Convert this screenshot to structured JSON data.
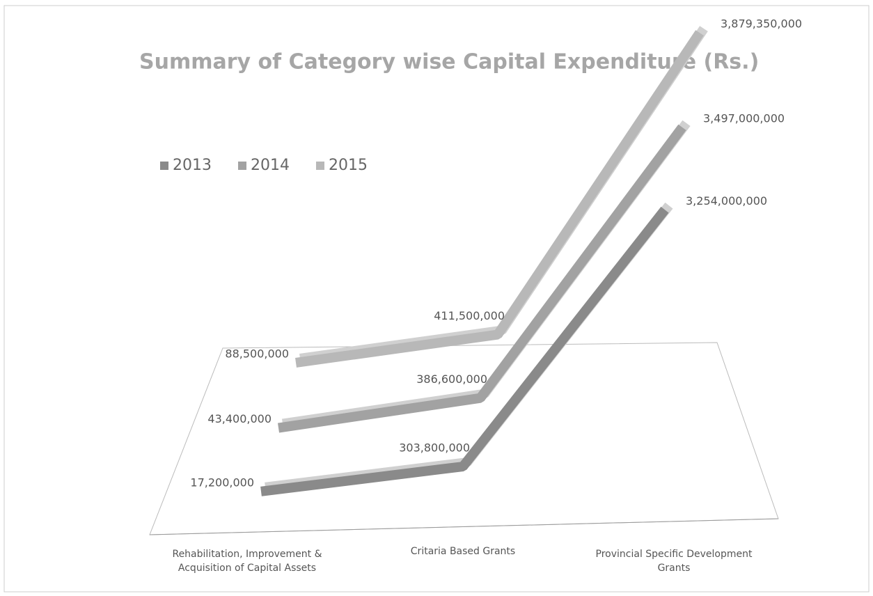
{
  "chart_data": {
    "type": "line3d",
    "title": "Summary of Category wise Capital Expenditure (Rs.)",
    "categories": [
      "Rehabilitation, Improvement & Acquisition of Capital Assets",
      "Critaria Based Grants",
      "Provincial Specific Development Grants"
    ],
    "series": [
      {
        "name": "2013",
        "color": "#8a8a8a",
        "values": [
          17200000,
          303800000,
          3254000000
        ],
        "value_labels": [
          "17,200,000",
          "303,800,000",
          "3,254,000,000"
        ]
      },
      {
        "name": "2014",
        "color": "#a2a2a2",
        "values": [
          43400000,
          386600000,
          3497000000
        ],
        "value_labels": [
          "43,400,000",
          "386,600,000",
          "3,497,000,000"
        ]
      },
      {
        "name": "2015",
        "color": "#b8b8b8",
        "values": [
          88500000,
          411500000,
          3879350000
        ],
        "value_labels": [
          "88,500,000",
          "411,500,000",
          "3,879,350,000"
        ]
      }
    ],
    "legend": "top-left"
  }
}
